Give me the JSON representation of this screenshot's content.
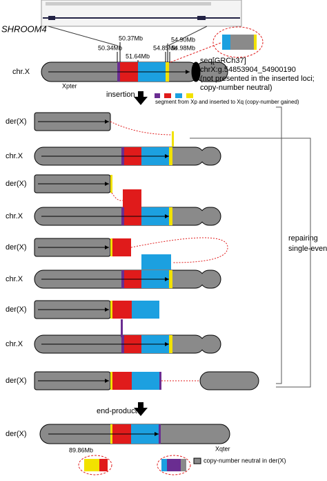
{
  "gene_label": "SHROOM4",
  "top": {
    "label": "chr.X",
    "pter": "Xpter",
    "positions": [
      "50.34Mb",
      "50.37Mb",
      "51.64Mb",
      "54.85Mb",
      "54.90Mb",
      "54.98Mb"
    ]
  },
  "inset": {
    "lines": [
      "seq[GRCh37]",
      "chrX:g.54853904_54900190",
      "(not presented in the inserted loci;",
      "copy-number neutral)"
    ]
  },
  "steps": {
    "insertion": "insertion",
    "end_product": "end-product"
  },
  "legend": {
    "segment": "segment from Xp and inserted to Xq (copy-number gained)",
    "neutral": "copy-number neutral in der(X)"
  },
  "rows": [
    {
      "label": "der(X)"
    },
    {
      "label": "chr.X"
    },
    {
      "label": "der(X)"
    },
    {
      "label": "chr.X"
    },
    {
      "label": "der(X)"
    },
    {
      "label": "chr.X"
    },
    {
      "label": "der(X)"
    },
    {
      "label": "chr.X"
    },
    {
      "label": "der(X)"
    }
  ],
  "brace_label": [
    "repairing",
    "single-event"
  ],
  "final": {
    "label": "der(X)",
    "qter": "Xqter",
    "position": "89.86Mb"
  }
}
